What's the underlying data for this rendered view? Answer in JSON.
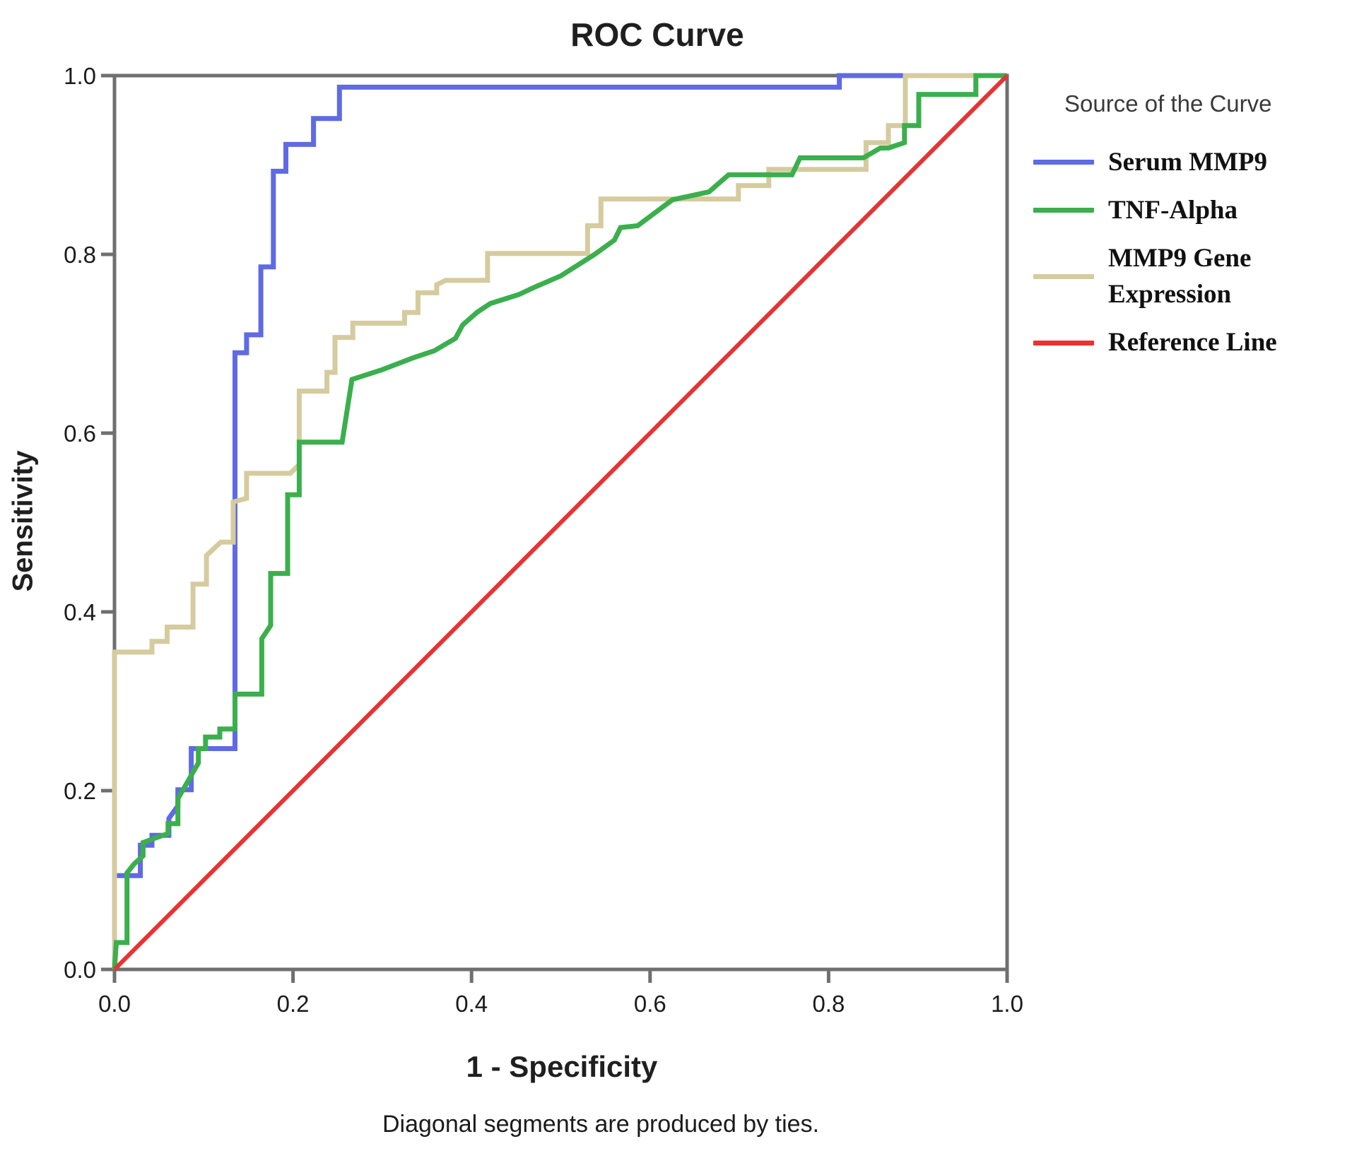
{
  "title": "ROC Curve",
  "axes": {
    "x_label": "1 - Specificity",
    "y_label": "Sensitivity",
    "x_ticks": [
      "0.0",
      "0.2",
      "0.4",
      "0.6",
      "0.8",
      "1.0"
    ],
    "y_ticks": [
      "0.0",
      "0.2",
      "0.4",
      "0.6",
      "0.8",
      "1.0"
    ]
  },
  "footnote": "Diagonal segments are produced by ties.",
  "legend": {
    "title": "Source of the Curve",
    "entries": [
      {
        "name": "serum-mmp9",
        "label": "Serum MMP9",
        "color": "#5F6AE4"
      },
      {
        "name": "tnf-alpha",
        "label": "TNF-Alpha",
        "color": "#3BAF4D"
      },
      {
        "name": "mmp9-gene-expression",
        "label": "MMP9 Gene\nExpression",
        "color": "#D5CB9E"
      },
      {
        "name": "reference-line",
        "label": "Reference Line",
        "color": "#E73333"
      }
    ]
  },
  "frame_color": "#6F6F6F",
  "chart_data": {
    "type": "line",
    "subtype": "roc-step-curves",
    "title": "ROC Curve",
    "xlabel": "1 - Specificity",
    "ylabel": "Sensitivity",
    "xlim": [
      0.0,
      1.0
    ],
    "ylim": [
      0.0,
      1.0
    ],
    "x_ticks": [
      0.0,
      0.2,
      0.4,
      0.6,
      0.8,
      1.0
    ],
    "y_ticks": [
      0.0,
      0.2,
      0.4,
      0.6,
      0.8,
      1.0
    ],
    "grid": false,
    "legend_position": "right",
    "draw_order": [
      0,
      2,
      1,
      3
    ],
    "series": [
      {
        "name": "Serum MMP9",
        "color": "#5F6AE4",
        "width": 7,
        "points": [
          [
            0,
            0
          ],
          [
            0,
            0.105
          ],
          [
            0.029,
            0.105
          ],
          [
            0.029,
            0.139
          ],
          [
            0.042,
            0.139
          ],
          [
            0.042,
            0.15
          ],
          [
            0.061,
            0.15
          ],
          [
            0.061,
            0.169
          ],
          [
            0.071,
            0.183
          ],
          [
            0.071,
            0.201
          ],
          [
            0.086,
            0.201
          ],
          [
            0.086,
            0.247
          ],
          [
            0.135,
            0.247
          ],
          [
            0.135,
            0.69
          ],
          [
            0.148,
            0.69
          ],
          [
            0.148,
            0.71
          ],
          [
            0.164,
            0.71
          ],
          [
            0.164,
            0.786
          ],
          [
            0.178,
            0.786
          ],
          [
            0.178,
            0.893
          ],
          [
            0.192,
            0.893
          ],
          [
            0.192,
            0.923
          ],
          [
            0.223,
            0.923
          ],
          [
            0.223,
            0.952
          ],
          [
            0.252,
            0.952
          ],
          [
            0.252,
            0.987
          ],
          [
            0.812,
            0.987
          ],
          [
            0.812,
            1.0
          ],
          [
            1,
            1
          ]
        ]
      },
      {
        "name": "TNF-Alpha",
        "color": "#3BAF4D",
        "width": 7,
        "points": [
          [
            0,
            0
          ],
          [
            0.002,
            0.03
          ],
          [
            0.014,
            0.03
          ],
          [
            0.014,
            0.108
          ],
          [
            0.022,
            0.118
          ],
          [
            0.032,
            0.127
          ],
          [
            0.032,
            0.142
          ],
          [
            0.046,
            0.147
          ],
          [
            0.06,
            0.152
          ],
          [
            0.06,
            0.163
          ],
          [
            0.071,
            0.163
          ],
          [
            0.071,
            0.191
          ],
          [
            0.094,
            0.231
          ],
          [
            0.094,
            0.247
          ],
          [
            0.102,
            0.247
          ],
          [
            0.102,
            0.26
          ],
          [
            0.118,
            0.26
          ],
          [
            0.118,
            0.269
          ],
          [
            0.135,
            0.269
          ],
          [
            0.135,
            0.308
          ],
          [
            0.165,
            0.308
          ],
          [
            0.165,
            0.37
          ],
          [
            0.175,
            0.385
          ],
          [
            0.175,
            0.443
          ],
          [
            0.194,
            0.443
          ],
          [
            0.194,
            0.531
          ],
          [
            0.207,
            0.531
          ],
          [
            0.207,
            0.59
          ],
          [
            0.255,
            0.59
          ],
          [
            0.266,
            0.66
          ],
          [
            0.3,
            0.671
          ],
          [
            0.334,
            0.684
          ],
          [
            0.358,
            0.692
          ],
          [
            0.382,
            0.706
          ],
          [
            0.39,
            0.721
          ],
          [
            0.406,
            0.735
          ],
          [
            0.421,
            0.745
          ],
          [
            0.453,
            0.755
          ],
          [
            0.47,
            0.763
          ],
          [
            0.5,
            0.776
          ],
          [
            0.538,
            0.8
          ],
          [
            0.56,
            0.816
          ],
          [
            0.567,
            0.83
          ],
          [
            0.586,
            0.832
          ],
          [
            0.625,
            0.861
          ],
          [
            0.666,
            0.87
          ],
          [
            0.688,
            0.889
          ],
          [
            0.759,
            0.889
          ],
          [
            0.768,
            0.908
          ],
          [
            0.839,
            0.908
          ],
          [
            0.858,
            0.919
          ],
          [
            0.867,
            0.919
          ],
          [
            0.885,
            0.925
          ],
          [
            0.885,
            0.944
          ],
          [
            0.901,
            0.944
          ],
          [
            0.901,
            0.979
          ],
          [
            0.965,
            0.979
          ],
          [
            0.965,
            1.0
          ],
          [
            1,
            1
          ]
        ]
      },
      {
        "name": "MMP9 Gene Expression",
        "color": "#D5CB9E",
        "width": 7,
        "points": [
          [
            0,
            0
          ],
          [
            0,
            0.355
          ],
          [
            0.042,
            0.355
          ],
          [
            0.042,
            0.367
          ],
          [
            0.059,
            0.367
          ],
          [
            0.059,
            0.383
          ],
          [
            0.088,
            0.383
          ],
          [
            0.088,
            0.431
          ],
          [
            0.103,
            0.431
          ],
          [
            0.103,
            0.463
          ],
          [
            0.119,
            0.478
          ],
          [
            0.133,
            0.478
          ],
          [
            0.133,
            0.523
          ],
          [
            0.148,
            0.527
          ],
          [
            0.148,
            0.555
          ],
          [
            0.197,
            0.555
          ],
          [
            0.207,
            0.565
          ],
          [
            0.207,
            0.647
          ],
          [
            0.238,
            0.647
          ],
          [
            0.238,
            0.668
          ],
          [
            0.247,
            0.668
          ],
          [
            0.247,
            0.707
          ],
          [
            0.267,
            0.707
          ],
          [
            0.267,
            0.723
          ],
          [
            0.325,
            0.723
          ],
          [
            0.325,
            0.735
          ],
          [
            0.34,
            0.735
          ],
          [
            0.34,
            0.757
          ],
          [
            0.361,
            0.757
          ],
          [
            0.361,
            0.766
          ],
          [
            0.371,
            0.771
          ],
          [
            0.418,
            0.771
          ],
          [
            0.418,
            0.801
          ],
          [
            0.53,
            0.801
          ],
          [
            0.53,
            0.832
          ],
          [
            0.545,
            0.832
          ],
          [
            0.545,
            0.862
          ],
          [
            0.699,
            0.862
          ],
          [
            0.699,
            0.877
          ],
          [
            0.733,
            0.877
          ],
          [
            0.733,
            0.895
          ],
          [
            0.842,
            0.895
          ],
          [
            0.842,
            0.925
          ],
          [
            0.867,
            0.925
          ],
          [
            0.867,
            0.944
          ],
          [
            0.886,
            0.944
          ],
          [
            0.886,
            1.0
          ],
          [
            1,
            1
          ]
        ]
      },
      {
        "name": "Reference Line",
        "color": "#E73333",
        "width": 6,
        "points": [
          [
            0,
            0
          ],
          [
            1,
            1
          ]
        ]
      }
    ]
  }
}
